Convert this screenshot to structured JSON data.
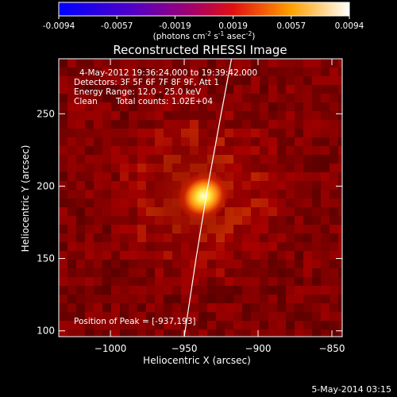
{
  "colorbar": {
    "ticks": [
      "-0.0094",
      "-0.0057",
      "-0.0019",
      "0.0019",
      "0.0057",
      "0.0094"
    ],
    "unit_main": "(photons cm",
    "unit_sup1": "-2",
    "unit_mid": " s",
    "unit_sup2": "-1",
    "unit_end": " asec",
    "unit_sup3": "-2",
    "unit_close": ")"
  },
  "annotations": {
    "time_range": "4-May-2012 19:36:24.000 to 19:39:42.000",
    "detectors": "Detectors: 3F 5F 6F 7F 8F 9F, Att 1",
    "energy": "Energy Range: 12.0 - 25.0 keV",
    "clean": "Clean",
    "total_counts": "Total counts: 1.02E+04",
    "peak": "Position of Peak = [-937,193]"
  },
  "footer": {
    "date": "5-May-2014 03:15"
  },
  "chart_data": {
    "type": "heatmap",
    "title": "Reconstructed RHESSI Image",
    "xlabel": "Heliocentric X (arcsec)",
    "ylabel": "Heliocentric Y (arcsec)",
    "xlim": [
      -1035,
      -843
    ],
    "ylim": [
      96,
      288
    ],
    "xticks": [
      -1000,
      -950,
      -900,
      -850
    ],
    "yticks": [
      100,
      150,
      200,
      250
    ],
    "xtick_labels": [
      "−1000",
      "−950",
      "−900",
      "−850"
    ],
    "ytick_labels": [
      "100",
      "150",
      "200",
      "250"
    ],
    "colorbar_range": [
      -0.0094,
      0.0094
    ],
    "colormap": "hot",
    "peak": {
      "x": -937,
      "y": 193
    },
    "limb_curve": [
      [
        -950,
        96
      ],
      [
        -942,
        150
      ],
      [
        -934,
        200
      ],
      [
        -925,
        250
      ],
      [
        -918,
        288
      ]
    ]
  }
}
